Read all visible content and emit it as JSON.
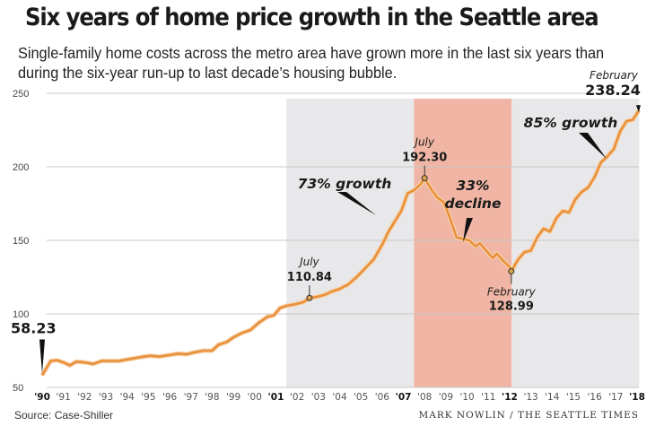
{
  "header": {
    "title": "Six years of home price growth in the Seattle area",
    "subtitle": "Single-family home costs across the metro area have grown more in the last six years than during the six-year run-up to last decade’s housing bubble."
  },
  "footer": {
    "source": "Source: Case-Shiller",
    "credit": "MARK NOWLIN / THE SEATTLE TIMES"
  },
  "colors": {
    "line": "#e8913c",
    "growth_shade": "#e8e8ea",
    "decline_shade": "#f0b5a4",
    "gridline": "#c8c8c8"
  },
  "chart_data": {
    "type": "line",
    "title": "Six years of home price growth in the Seattle area",
    "xlabel": "",
    "ylabel": "",
    "ylim": [
      50,
      250
    ],
    "xlim": [
      1990,
      2018.2
    ],
    "grid": true,
    "yticks": [
      250,
      200,
      150,
      100,
      50
    ],
    "xticks": [
      {
        "year": 1990,
        "label": "'90",
        "bold": true
      },
      {
        "year": 1991,
        "label": "'91",
        "bold": false
      },
      {
        "year": 1992,
        "label": "'92",
        "bold": false
      },
      {
        "year": 1993,
        "label": "'93",
        "bold": false
      },
      {
        "year": 1994,
        "label": "'94",
        "bold": false
      },
      {
        "year": 1995,
        "label": "'95",
        "bold": false
      },
      {
        "year": 1996,
        "label": "'96",
        "bold": false
      },
      {
        "year": 1997,
        "label": "'97",
        "bold": false
      },
      {
        "year": 1998,
        "label": "'98",
        "bold": false
      },
      {
        "year": 1999,
        "label": "'99",
        "bold": false
      },
      {
        "year": 2000,
        "label": "'00",
        "bold": false
      },
      {
        "year": 2001,
        "label": "'01",
        "bold": true
      },
      {
        "year": 2002,
        "label": "'02",
        "bold": false
      },
      {
        "year": 2003,
        "label": "'03",
        "bold": false
      },
      {
        "year": 2004,
        "label": "'04",
        "bold": false
      },
      {
        "year": 2005,
        "label": "'05",
        "bold": false
      },
      {
        "year": 2006,
        "label": "'06",
        "bold": false
      },
      {
        "year": 2007,
        "label": "'07",
        "bold": true
      },
      {
        "year": 2008,
        "label": "'08",
        "bold": false
      },
      {
        "year": 2009,
        "label": "'09",
        "bold": false
      },
      {
        "year": 2010,
        "label": "'10",
        "bold": false
      },
      {
        "year": 2011,
        "label": "'11",
        "bold": false
      },
      {
        "year": 2012,
        "label": "'12",
        "bold": true
      },
      {
        "year": 2013,
        "label": "'13",
        "bold": false
      },
      {
        "year": 2014,
        "label": "'14",
        "bold": false
      },
      {
        "year": 2015,
        "label": "'15",
        "bold": false
      },
      {
        "year": 2016,
        "label": "'16",
        "bold": false
      },
      {
        "year": 2017,
        "label": "'17",
        "bold": false
      },
      {
        "year": 2018,
        "label": "'18",
        "bold": true
      }
    ],
    "shaded_periods": [
      {
        "name": "growth-2001-2007",
        "start": 2001.5,
        "end": 2007.5,
        "kind": "growth"
      },
      {
        "name": "decline-2007-2012",
        "start": 2007.5,
        "end": 2012.1,
        "kind": "decline"
      },
      {
        "name": "growth-2012-2018",
        "start": 2012.1,
        "end": 2018.1,
        "kind": "growth"
      }
    ],
    "series": [
      {
        "name": "Case-Shiller Seattle home price index",
        "points": [
          [
            1990.0,
            58.23
          ],
          [
            1990.4,
            68
          ],
          [
            1990.7,
            68.5
          ],
          [
            1991.0,
            67
          ],
          [
            1991.3,
            65
          ],
          [
            1991.6,
            67.5
          ],
          [
            1992.0,
            67
          ],
          [
            1992.4,
            66
          ],
          [
            1992.8,
            68
          ],
          [
            1993.2,
            68
          ],
          [
            1993.6,
            68
          ],
          [
            1994.0,
            69
          ],
          [
            1994.4,
            70
          ],
          [
            1994.8,
            71
          ],
          [
            1995.1,
            71.5
          ],
          [
            1995.5,
            71
          ],
          [
            1996.0,
            72
          ],
          [
            1996.4,
            73
          ],
          [
            1996.8,
            72.5
          ],
          [
            1997.2,
            74
          ],
          [
            1997.6,
            75
          ],
          [
            1998.0,
            75
          ],
          [
            1998.3,
            79
          ],
          [
            1998.7,
            81
          ],
          [
            1999.0,
            84
          ],
          [
            1999.4,
            87
          ],
          [
            1999.8,
            89
          ],
          [
            2000.2,
            94
          ],
          [
            2000.6,
            98
          ],
          [
            2000.9,
            99
          ],
          [
            2001.2,
            104
          ],
          [
            2001.5,
            105.5
          ],
          [
            2001.9,
            106.5
          ],
          [
            2002.3,
            108
          ],
          [
            2002.58,
            110.84
          ],
          [
            2002.9,
            111.5
          ],
          [
            2003.3,
            113
          ],
          [
            2003.6,
            115
          ],
          [
            2004.0,
            117
          ],
          [
            2004.4,
            120
          ],
          [
            2004.8,
            125
          ],
          [
            2005.2,
            131
          ],
          [
            2005.6,
            137
          ],
          [
            2006.0,
            147
          ],
          [
            2006.3,
            156
          ],
          [
            2006.6,
            163
          ],
          [
            2006.9,
            170
          ],
          [
            2007.2,
            182
          ],
          [
            2007.5,
            184
          ],
          [
            2007.8,
            188
          ],
          [
            2008.0,
            192.3
          ],
          [
            2008.3,
            185
          ],
          [
            2008.6,
            179
          ],
          [
            2008.9,
            176
          ],
          [
            2009.2,
            165
          ],
          [
            2009.5,
            152
          ],
          [
            2009.8,
            151
          ],
          [
            2010.1,
            150
          ],
          [
            2010.4,
            146
          ],
          [
            2010.6,
            148
          ],
          [
            2010.9,
            143
          ],
          [
            2011.2,
            138
          ],
          [
            2011.4,
            141
          ],
          [
            2011.7,
            136
          ],
          [
            2012.0,
            132
          ],
          [
            2012.08,
            128.99
          ],
          [
            2012.4,
            137
          ],
          [
            2012.7,
            142
          ],
          [
            2013.0,
            143
          ],
          [
            2013.3,
            152
          ],
          [
            2013.6,
            158
          ],
          [
            2013.9,
            156
          ],
          [
            2014.2,
            165
          ],
          [
            2014.5,
            170
          ],
          [
            2014.8,
            169
          ],
          [
            2015.1,
            178
          ],
          [
            2015.4,
            183
          ],
          [
            2015.7,
            186
          ],
          [
            2016.0,
            193
          ],
          [
            2016.3,
            203
          ],
          [
            2016.6,
            207
          ],
          [
            2016.9,
            212
          ],
          [
            2017.2,
            224
          ],
          [
            2017.5,
            231
          ],
          [
            2017.8,
            232
          ],
          [
            2018.08,
            238.24
          ]
        ]
      }
    ],
    "annotations": [
      {
        "name": "start",
        "x": 1990.0,
        "y": 58.23,
        "month": "",
        "value": "58.23",
        "marker": false
      },
      {
        "name": "july-2002",
        "x": 2002.58,
        "y": 110.84,
        "month": "July",
        "value": "110.84",
        "marker": true
      },
      {
        "name": "july-2007",
        "x": 2008.0,
        "y": 192.3,
        "month": "July",
        "value": "192.30",
        "marker": true
      },
      {
        "name": "february-2012",
        "x": 2012.08,
        "y": 128.99,
        "month": "February",
        "value": "128.99",
        "marker": true
      },
      {
        "name": "february-2018",
        "x": 2018.08,
        "y": 238.24,
        "month": "February",
        "value": "238.24",
        "marker": false
      }
    ],
    "callouts": [
      {
        "name": "growth-73",
        "lines": [
          "73% growth"
        ]
      },
      {
        "name": "decline-33",
        "lines": [
          "33%",
          "decline"
        ]
      },
      {
        "name": "growth-85",
        "lines": [
          "85% growth"
        ]
      }
    ]
  }
}
